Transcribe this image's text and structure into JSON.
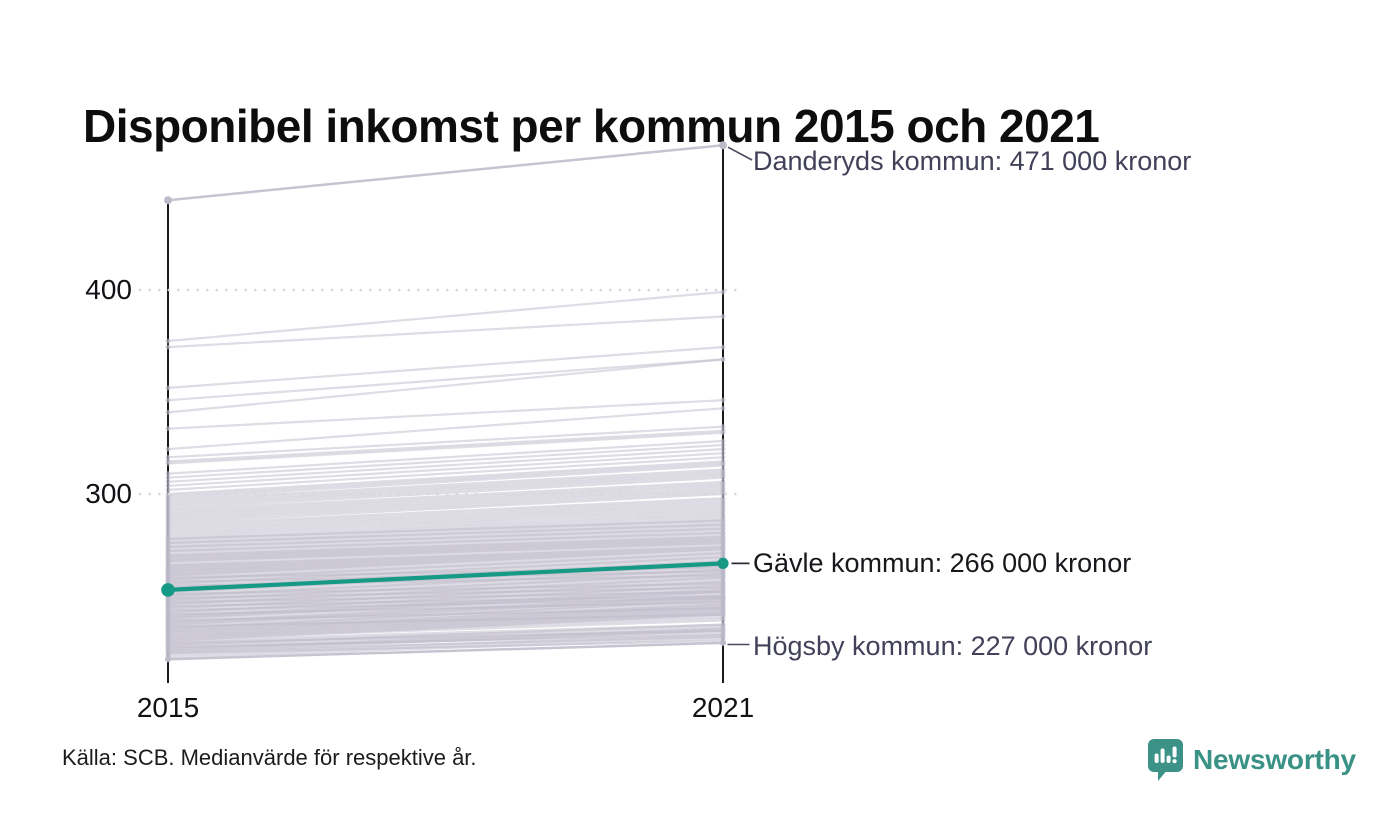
{
  "title": "Disponibel inkomst per kommun 2015 och 2021",
  "source": "Källa: SCB. Medianvärde för respektive år.",
  "branding": {
    "name": "Newsworthy",
    "icon": "newsworthy-speech-bubble-bars-icon",
    "color": "#3a9186"
  },
  "axis": {
    "x_left": "2015",
    "x_right": "2021",
    "y_upper": "400",
    "y_lower": "300"
  },
  "annotations": {
    "danderyd": {
      "text": "Danderyds kommun: 471 000 kronor"
    },
    "gavle": {
      "text": "Gävle kommun: 266 000 kronor"
    },
    "hogsby": {
      "text": "Högsby kommun: 227 000 kronor"
    }
  },
  "colors": {
    "highlight_teal": "#169a86",
    "background_line_gray": "#bdbac9",
    "axis_black": "#1a1a1a",
    "gridline_gray": "#d8d7dc",
    "annotation_muted": "#41415a",
    "annotation_strong": "#17171c",
    "brand_teal": "#3a9186"
  },
  "chart_data": {
    "type": "line",
    "variant": "slope",
    "title": "Disponibel inkomst per kommun 2015 och 2021",
    "x": [
      2015,
      2021
    ],
    "x_labels": [
      "2015",
      "2021"
    ],
    "y_ticks": [
      300,
      400
    ],
    "y_unit": "tusen kronor",
    "ylim": [
      210,
      480
    ],
    "grid": "dotted-horizontal",
    "legend": "none",
    "annotated_series": [
      {
        "name": "Danderyds kommun",
        "values": [
          444,
          471
        ],
        "label": "Danderyds kommun: 471 000 kronor",
        "emphasis": "labeled-gray"
      },
      {
        "name": "Gävle kommun",
        "values": [
          253,
          266
        ],
        "label": "Gävle kommun: 266 000 kronor",
        "emphasis": "highlighted-teal"
      },
      {
        "name": "Högsby kommun",
        "values": [
          219,
          227
        ],
        "label": "Högsby kommun: 227 000 kronor",
        "emphasis": "labeled-gray"
      }
    ],
    "background_series": {
      "description": "Övriga kommuner (unlabeled gray slope lines, values in 1000 kronor, estimated from plot)",
      "values": [
        [
          220,
          229
        ],
        [
          221,
          230
        ],
        [
          222,
          231
        ],
        [
          222,
          228
        ],
        [
          223,
          230
        ],
        [
          223,
          233
        ],
        [
          224,
          232
        ],
        [
          224,
          234
        ],
        [
          225,
          233
        ],
        [
          225,
          231
        ],
        [
          226,
          234
        ],
        [
          226,
          236
        ],
        [
          227,
          235
        ],
        [
          227,
          233
        ],
        [
          228,
          241
        ],
        [
          228,
          236
        ],
        [
          229,
          238
        ],
        [
          229,
          242
        ],
        [
          230,
          243
        ],
        [
          230,
          239
        ],
        [
          231,
          240
        ],
        [
          231,
          244
        ],
        [
          232,
          245
        ],
        [
          232,
          241
        ],
        [
          233,
          242
        ],
        [
          233,
          246
        ],
        [
          234,
          243
        ],
        [
          234,
          248
        ],
        [
          235,
          244
        ],
        [
          235,
          241
        ],
        [
          236,
          249
        ],
        [
          236,
          245
        ],
        [
          237,
          246
        ],
        [
          237,
          250
        ],
        [
          238,
          247
        ],
        [
          238,
          244
        ],
        [
          239,
          252
        ],
        [
          239,
          248
        ],
        [
          240,
          249
        ],
        [
          240,
          253
        ],
        [
          241,
          250
        ],
        [
          241,
          247
        ],
        [
          242,
          255
        ],
        [
          242,
          251
        ],
        [
          243,
          252
        ],
        [
          243,
          249
        ],
        [
          244,
          257
        ],
        [
          244,
          253
        ],
        [
          245,
          254
        ],
        [
          245,
          250
        ],
        [
          246,
          259
        ],
        [
          246,
          255
        ],
        [
          247,
          256
        ],
        [
          247,
          252
        ],
        [
          248,
          261
        ],
        [
          248,
          257
        ],
        [
          249,
          258
        ],
        [
          249,
          254
        ],
        [
          250,
          263
        ],
        [
          250,
          259
        ],
        [
          251,
          260
        ],
        [
          251,
          256
        ],
        [
          252,
          265
        ],
        [
          252,
          261
        ],
        [
          253,
          262
        ],
        [
          254,
          267
        ],
        [
          254,
          263
        ],
        [
          255,
          264
        ],
        [
          255,
          260
        ],
        [
          256,
          269
        ],
        [
          256,
          265
        ],
        [
          257,
          266
        ],
        [
          257,
          262
        ],
        [
          258,
          271
        ],
        [
          258,
          267
        ],
        [
          259,
          268
        ],
        [
          259,
          264
        ],
        [
          260,
          273
        ],
        [
          260,
          269
        ],
        [
          261,
          274
        ],
        [
          261,
          270
        ],
        [
          262,
          275
        ],
        [
          262,
          271
        ],
        [
          263,
          276
        ],
        [
          263,
          272
        ],
        [
          264,
          277
        ],
        [
          264,
          273
        ],
        [
          265,
          278
        ],
        [
          265,
          274
        ],
        [
          266,
          279
        ],
        [
          267,
          280
        ],
        [
          267,
          276
        ],
        [
          268,
          281
        ],
        [
          268,
          277
        ],
        [
          269,
          282
        ],
        [
          269,
          278
        ],
        [
          270,
          283
        ],
        [
          270,
          279
        ],
        [
          271,
          284
        ],
        [
          272,
          285
        ],
        [
          272,
          281
        ],
        [
          273,
          286
        ],
        [
          274,
          287
        ],
        [
          274,
          283
        ],
        [
          275,
          288
        ],
        [
          276,
          289
        ],
        [
          276,
          285
        ],
        [
          277,
          290
        ],
        [
          278,
          291
        ],
        [
          278,
          287
        ],
        [
          279,
          292
        ],
        [
          280,
          293
        ],
        [
          281,
          294
        ],
        [
          282,
          295
        ],
        [
          283,
          296
        ],
        [
          284,
          297
        ],
        [
          285,
          298
        ],
        [
          286,
          300
        ],
        [
          287,
          301
        ],
        [
          288,
          302
        ],
        [
          289,
          303
        ],
        [
          290,
          304
        ],
        [
          291,
          305
        ],
        [
          292,
          306
        ],
        [
          293,
          308
        ],
        [
          294,
          309
        ],
        [
          295,
          310
        ],
        [
          296,
          311
        ],
        [
          297,
          312
        ],
        [
          298,
          314
        ],
        [
          299,
          315
        ],
        [
          300,
          316
        ],
        [
          302,
          318
        ],
        [
          304,
          320
        ],
        [
          306,
          322
        ],
        [
          308,
          324
        ],
        [
          310,
          326
        ],
        [
          315,
          330
        ],
        [
          316,
          331
        ],
        [
          318,
          333
        ],
        [
          322,
          342
        ],
        [
          332,
          346
        ],
        [
          340,
          366
        ],
        [
          346,
          366
        ],
        [
          352,
          372
        ],
        [
          372,
          387
        ],
        [
          375,
          399
        ]
      ]
    }
  }
}
